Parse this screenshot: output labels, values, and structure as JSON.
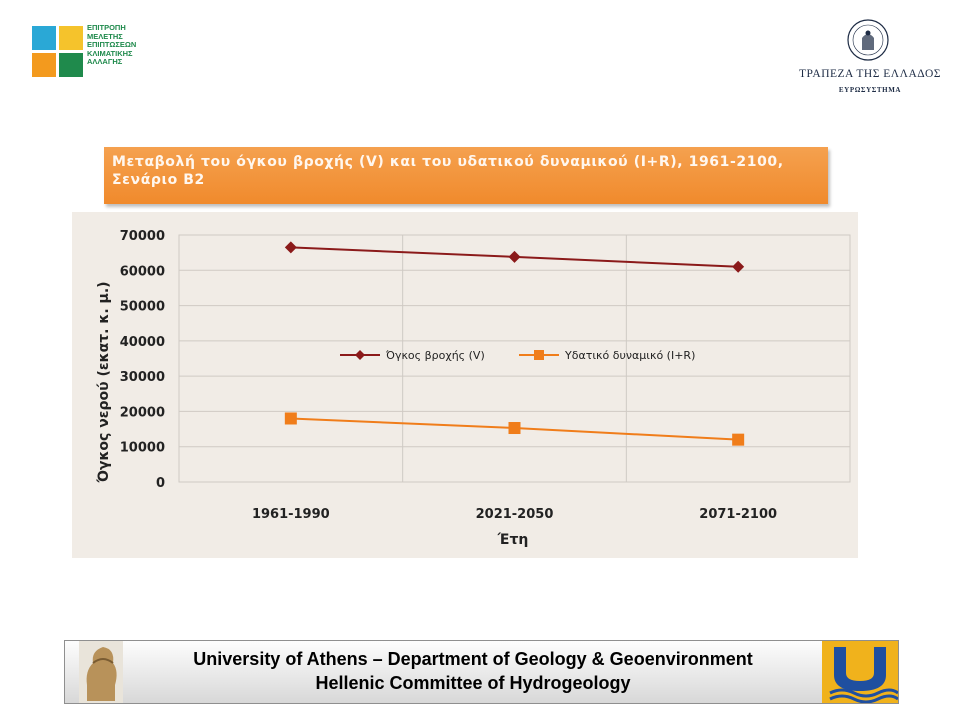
{
  "header": {
    "committee_logo_text": [
      "ΕΠΙΤΡΟΠΗ",
      "ΜΕΛΕΤΗΣ",
      "ΕΠΙΠΤΩΣΕΩΝ",
      "ΚΛΙΜΑΤΙΚΗΣ",
      "ΑΛΛΑΓΗΣ"
    ],
    "bank_name": "ΤΡΑΠΕΖΑ ΤΗΣ ΕΛΛΑΔΟΣ",
    "bank_subtitle": "ΕΥΡΩΣΥΣΤΗΜΑ"
  },
  "colors": {
    "title_band": "#f08a2c",
    "series_rain": "#8b1a1a",
    "series_water": "#f07d1a",
    "scan_background": "#f1ece6",
    "committee_green": "#1f8a4c",
    "committee_blue": "#2aa8d6",
    "committee_orange": "#f39a1e"
  },
  "chart_data": {
    "type": "line",
    "title": "Μεταβολή του όγκου βροχής (V) και του υδατικού δυναμικού (I+R), 1961-2100, Σενάριο Β2",
    "xlabel": "Έτη",
    "ylabel": "Όγκος νερού (εκατ. κ. μ.)",
    "categories": [
      "1961-1990",
      "2021-2050",
      "2071-2100"
    ],
    "ylim": [
      0,
      70000
    ],
    "yticks": [
      "0",
      "10000",
      "20000",
      "30000",
      "40000",
      "50000",
      "60000",
      "70000"
    ],
    "grid": true,
    "legend_position": "center",
    "series": [
      {
        "name": "Όγκος βροχής (V)",
        "values": [
          66500,
          63800,
          61000
        ],
        "marker": "diamond",
        "color": "#8b1a1a"
      },
      {
        "name": "Υδατικό δυναμικό (I+R)",
        "values": [
          18000,
          15300,
          12000
        ],
        "marker": "square",
        "color": "#f07d1a"
      }
    ]
  },
  "footer": {
    "line1": "University of Athens – Department of Geology & Geoenvironment",
    "line2": "Hellenic Committee of Hydrogeology"
  }
}
